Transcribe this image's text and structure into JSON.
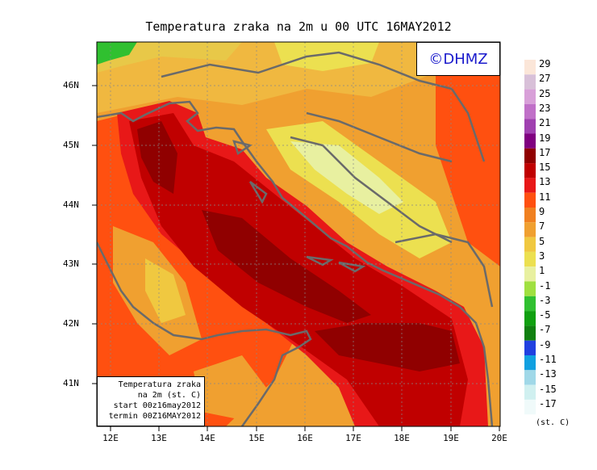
{
  "title": "Temperatura zraka na 2m u 00 UTC 16MAY2012",
  "logo": "©DHMZ",
  "info": {
    "line1": "Temperatura zraka",
    "line2": "na 2m (st. C)",
    "line3": "start 00z16may2012",
    "line4": "termin 00Z16MAY2012"
  },
  "lat_ticks": [
    "46N",
    "45N",
    "44N",
    "43N",
    "42N",
    "41N"
  ],
  "lon_ticks": [
    "12E",
    "13E",
    "14E",
    "15E",
    "16E",
    "17E",
    "18E",
    "19E",
    "20E"
  ],
  "colorbar": {
    "labels": [
      "29",
      "27",
      "25",
      "23",
      "21",
      "19",
      "17",
      "15",
      "13",
      "11",
      "9",
      "7",
      "5",
      "3",
      "1",
      "-1",
      "-3",
      "-5",
      "-7",
      "-9",
      "-11",
      "-13",
      "-15",
      "-17"
    ],
    "colors": [
      "#fbe6d8",
      "#d8c0d8",
      "#d8a0d8",
      "#c070c8",
      "#a040b0",
      "#800080",
      "#900000",
      "#c00000",
      "#e81818",
      "#ff5010",
      "#f08020",
      "#f0a030",
      "#f0c840",
      "#ece050",
      "#e8f0a0",
      "#a0e040",
      "#30c030",
      "#10a010",
      "#108010",
      "#2040e0",
      "#10a0e0",
      "#a0d8e8",
      "#d0f0f0",
      "#f0fafa"
    ],
    "units": "(st. C)"
  },
  "colors": {
    "coast": "#6a6a6a",
    "sea_deep": "#9a0000",
    "sea": "#c80000"
  }
}
